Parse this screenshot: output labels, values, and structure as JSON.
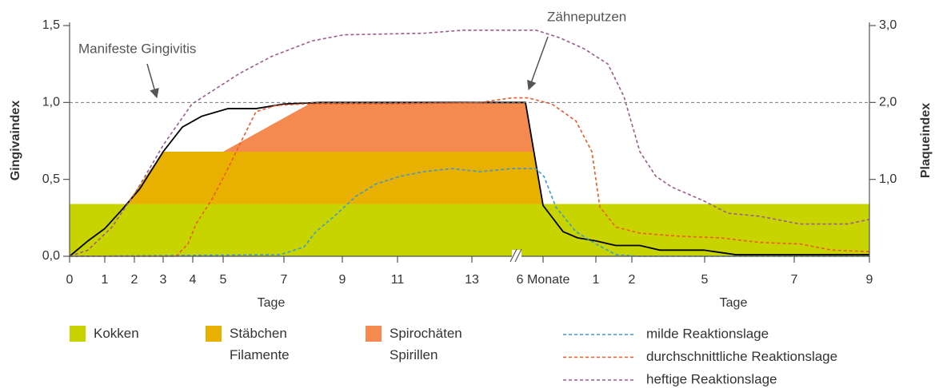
{
  "chart_data": {
    "type": "line",
    "y_label": "Gingivaindex",
    "y2_label": "Plaqueindex",
    "x_labels": [
      "Tage",
      "Tage"
    ],
    "xlim": [
      0,
      100
    ],
    "xticks": [
      {
        "value": 0,
        "label": "0"
      },
      {
        "value": 4.4,
        "label": "1"
      },
      {
        "value": 8.1,
        "label": "2"
      },
      {
        "value": 11.7,
        "label": "3"
      },
      {
        "value": 15.4,
        "label": "4"
      },
      {
        "value": 19.2,
        "label": "5"
      },
      {
        "value": 26.8,
        "label": "7"
      },
      {
        "value": 34.1,
        "label": "9"
      },
      {
        "value": 41,
        "label": "11"
      },
      {
        "value": 50.3,
        "label": "13"
      },
      {
        "value": 59.2,
        "label": "6 Monate"
      },
      {
        "value": 65.8,
        "label": "1"
      },
      {
        "value": 70.3,
        "label": "2"
      },
      {
        "value": 79.4,
        "label": "5"
      },
      {
        "value": 90.6,
        "label": "7"
      },
      {
        "value": 100,
        "label": "9"
      }
    ],
    "ylim": [
      0,
      1.5
    ],
    "yticks": [
      {
        "value": 0,
        "label": "0,0"
      },
      {
        "value": 0.5,
        "label": "0,5"
      },
      {
        "value": 1,
        "label": "1,0"
      },
      {
        "value": 1.5,
        "label": "1,5"
      }
    ],
    "y2lim": [
      0,
      3
    ],
    "y2ticks": [
      {
        "value": 1,
        "label": "1,0"
      },
      {
        "value": 2,
        "label": "2,0"
      },
      {
        "value": 3,
        "label": "3,0"
      }
    ],
    "reference_line": 1,
    "annotations": [
      "Manifeste Gingivitis",
      "Zähneputzen"
    ],
    "series": [
      {
        "type": "area",
        "name": "Kokken",
        "color": "#c8d400",
        "x": [
          0,
          100,
          100,
          0
        ],
        "values": [
          0,
          0,
          0.34,
          0.34
        ]
      },
      {
        "type": "area",
        "name": "Stäbchen Filamente",
        "color": "#e8b000",
        "x": [
          7.1,
          11.7,
          58.1,
          59.2
        ],
        "values": [
          0.34,
          0.68,
          0.68,
          0.34
        ]
      },
      {
        "type": "area",
        "name": "Spirochäten Spirillen",
        "color": "#f58a50",
        "x": [
          19.2,
          30.3,
          57,
          58.1
        ],
        "values": [
          0.68,
          1,
          1,
          0.68
        ]
      },
      {
        "type": "line",
        "color": "#000000",
        "dashed": false,
        "x": [
          0,
          2.3,
          4.4,
          6.5,
          8.8,
          11.7,
          14.1,
          16.5,
          19.8,
          23.3,
          26.8,
          31.3,
          41.3,
          57,
          59.2,
          61.7,
          63.5,
          65.8,
          68.3,
          71.3,
          73.8,
          79.3,
          83.3,
          100
        ],
        "values": [
          0,
          0.1,
          0.18,
          0.3,
          0.44,
          0.68,
          0.84,
          0.91,
          0.96,
          0.96,
          0.99,
          1,
          1,
          1,
          0.33,
          0.16,
          0.12,
          0.1,
          0.07,
          0.07,
          0.04,
          0.04,
          0.01,
          0.01
        ]
      },
      {
        "type": "line",
        "name": "milde Reaktionslage",
        "color": "#3d9ad1",
        "dashed": true,
        "x": [
          0,
          26.3,
          29.3,
          30.8,
          33.3,
          35.8,
          38.3,
          41.3,
          44.3,
          47.8,
          51.3,
          55.3,
          58.3,
          59.3,
          60.8,
          63.3,
          65.8,
          68.3,
          71.3,
          100
        ],
        "values": [
          0,
          0.01,
          0.06,
          0.16,
          0.27,
          0.39,
          0.47,
          0.52,
          0.55,
          0.57,
          0.55,
          0.57,
          0.57,
          0.52,
          0.32,
          0.16,
          0.08,
          0.01,
          0,
          0
        ]
      },
      {
        "type": "line",
        "name": "durchschnittliche Reaktionslage",
        "color": "#f05a28",
        "dashed": true,
        "x": [
          0,
          13.3,
          14.8,
          15.8,
          17.8,
          19.8,
          21.3,
          23.3,
          25.8,
          29.3,
          41.3,
          51.3,
          55.3,
          57.3,
          60.3,
          63.3,
          65.3,
          66.3,
          68.3,
          71.3,
          76.3,
          81.3,
          86.3,
          91.3,
          95.3,
          100
        ],
        "values": [
          0,
          0,
          0.08,
          0.21,
          0.37,
          0.57,
          0.73,
          0.94,
          0.98,
          0.99,
          0.99,
          1,
          1.03,
          1.03,
          0.99,
          0.88,
          0.68,
          0.32,
          0.19,
          0.15,
          0.13,
          0.12,
          0.09,
          0.08,
          0.04,
          0.03
        ]
      },
      {
        "type": "line",
        "name": "heftige Reaktionslage",
        "color": "#9b5c8f",
        "dashed": true,
        "x": [
          0,
          2.3,
          5.3,
          8.3,
          11.8,
          15.3,
          18.3,
          21.3,
          25.3,
          30.3,
          34.3,
          44.3,
          49.3,
          58.3,
          61.3,
          64.3,
          67.3,
          69.3,
          71.3,
          73.3,
          75.3,
          79.3,
          82.3,
          86.3,
          91.3,
          97.3,
          100
        ],
        "values": [
          0,
          0.04,
          0.19,
          0.42,
          0.73,
          0.99,
          1.09,
          1.19,
          1.3,
          1.4,
          1.44,
          1.45,
          1.47,
          1.47,
          1.42,
          1.35,
          1.25,
          1.04,
          0.68,
          0.52,
          0.45,
          0.36,
          0.28,
          0.26,
          0.21,
          0.21,
          0.24
        ]
      }
    ]
  }
}
